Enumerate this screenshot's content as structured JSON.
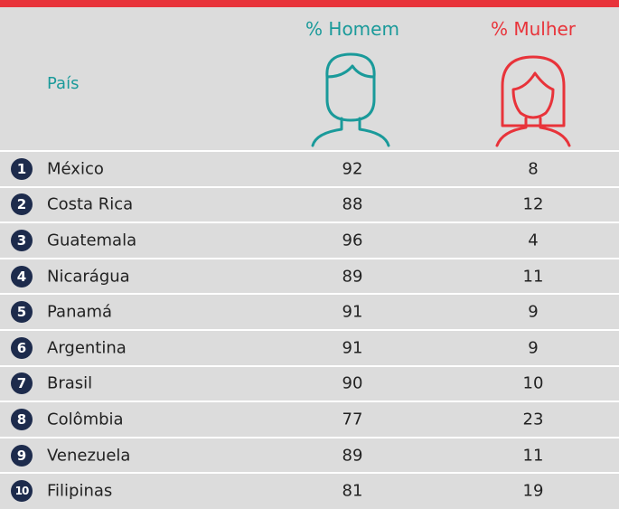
{
  "header": {
    "country": "País",
    "men": "% Homem",
    "women": "% Mulher"
  },
  "table": {
    "rows": [
      [
        "1",
        "México",
        92,
        8
      ],
      [
        "2",
        "Costa Rica",
        88,
        12
      ],
      [
        "3",
        "Guatemala",
        96,
        4
      ],
      [
        "4",
        "Nicarágua",
        89,
        11
      ],
      [
        "5",
        "Panamá",
        91,
        9
      ],
      [
        "6",
        "Argentina",
        91,
        9
      ],
      [
        "7",
        "Brasil",
        90,
        10
      ],
      [
        "8",
        "Colômbia",
        77,
        23
      ],
      [
        "9",
        "Venezuela",
        89,
        11
      ],
      [
        "10",
        "Filipinas",
        81,
        19
      ]
    ]
  }
}
